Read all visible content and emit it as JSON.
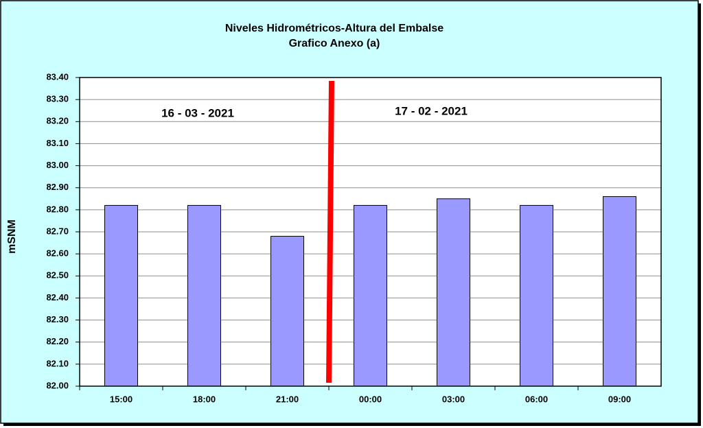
{
  "chart_data": {
    "type": "bar",
    "title": "Niveles Hidrométricos-Altura del Embalse",
    "subtitle": "Grafico Anexo (a)",
    "y_label": "mSNM",
    "annotations": [
      "16 - 03 - 2021",
      "17 - 02 - 2021"
    ],
    "categories": [
      "15:00",
      "18:00",
      "21:00",
      "00:00",
      "03:00",
      "06:00",
      "09:00"
    ],
    "values": [
      82.82,
      82.82,
      82.68,
      82.82,
      82.85,
      82.82,
      82.86
    ],
    "color": "#9999ff",
    "ylim": [
      82.0,
      83.4
    ],
    "yticks": [
      {
        "value": 82.0,
        "label": "82.00"
      },
      {
        "value": 82.1,
        "label": "82.10"
      },
      {
        "value": 82.2,
        "label": "82.20"
      },
      {
        "value": 82.3,
        "label": "82.30"
      },
      {
        "value": 82.4,
        "label": "82.40"
      },
      {
        "value": 82.5,
        "label": "82.50"
      },
      {
        "value": 82.6,
        "label": "82.60"
      },
      {
        "value": 82.7,
        "label": "82.70"
      },
      {
        "value": 82.8,
        "label": "82.80"
      },
      {
        "value": 82.9,
        "label": "82.90"
      },
      {
        "value": 83.0,
        "label": "83.00"
      },
      {
        "value": 83.1,
        "label": "83.10"
      },
      {
        "value": 83.2,
        "label": "83.20"
      },
      {
        "value": 83.3,
        "label": "83.30"
      },
      {
        "value": 83.4,
        "label": "83.40"
      }
    ],
    "grid": true
  }
}
